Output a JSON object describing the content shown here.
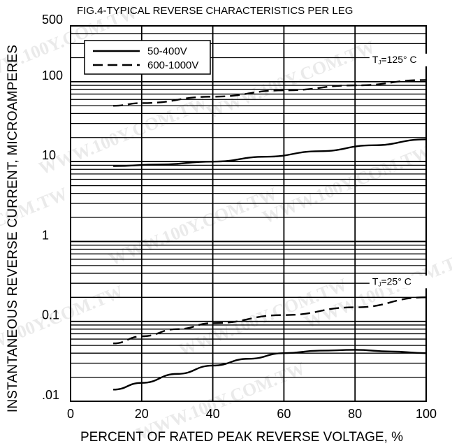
{
  "chart_data": {
    "type": "line",
    "title": "FIG.4-TYPICAL REVERSE CHARACTERISTICS PER LEG",
    "xlabel": "PERCENT OF RATED PEAK REVERSE VOLTAGE, %",
    "ylabel": "INSTANTANEOUS REVERSE CURRENT, MICROAMPERES",
    "x_scale": "linear",
    "y_scale": "log",
    "xlim": [
      0,
      100
    ],
    "ylim": [
      0.01,
      500
    ],
    "x_ticks": [
      {
        "value": 0,
        "label": "0"
      },
      {
        "value": 20,
        "label": "20"
      },
      {
        "value": 40,
        "label": "40"
      },
      {
        "value": 60,
        "label": "60"
      },
      {
        "value": 80,
        "label": "80"
      },
      {
        "value": 100,
        "label": "100"
      }
    ],
    "y_ticks": [
      {
        "value": 500,
        "label": "500"
      },
      {
        "value": 100,
        "label": "100"
      },
      {
        "value": 10,
        "label": "10"
      },
      {
        "value": 1,
        "label": "1"
      },
      {
        "value": 0.1,
        "label": "0.1"
      },
      {
        "value": 0.01,
        "label": ".01"
      }
    ],
    "grid": true,
    "legend": {
      "position": "top-left",
      "entries": [
        {
          "label": "50-400V",
          "style": "solid"
        },
        {
          "label": "600-1000V",
          "style": "dashed"
        }
      ]
    },
    "annotations": [
      {
        "text": "TJ=125° C",
        "main": "T",
        "sub": "J",
        "rest": "=125° C",
        "x": 88,
        "y": 120
      },
      {
        "text": "TJ=25° C",
        "main": "T",
        "sub": "J",
        "rest": "=25° C",
        "x": 88,
        "y": 0.2
      }
    ],
    "series": [
      {
        "legend": "600-1000V",
        "condition": "TJ=125° C",
        "style": "dashed",
        "points": [
          [
            12,
            50
          ],
          [
            20,
            54
          ],
          [
            40,
            65
          ],
          [
            60,
            78
          ],
          [
            80,
            90
          ],
          [
            100,
            105
          ]
        ]
      },
      {
        "legend": "50-400V",
        "condition": "TJ=125° C",
        "style": "solid",
        "points": [
          [
            12,
            8.8
          ],
          [
            25,
            9.2
          ],
          [
            40,
            10
          ],
          [
            55,
            11.5
          ],
          [
            70,
            13.5
          ],
          [
            85,
            16
          ],
          [
            100,
            19
          ]
        ]
      },
      {
        "legend": "600-1000V",
        "condition": "TJ=25° C",
        "style": "dashed",
        "points": [
          [
            12,
            0.053
          ],
          [
            20,
            0.065
          ],
          [
            30,
            0.08
          ],
          [
            40,
            0.095
          ],
          [
            60,
            0.12
          ],
          [
            80,
            0.15
          ],
          [
            100,
            0.2
          ]
        ]
      },
      {
        "legend": "50-400V",
        "condition": "TJ=25° C",
        "style": "solid",
        "points": [
          [
            12,
            0.014
          ],
          [
            20,
            0.017
          ],
          [
            30,
            0.022
          ],
          [
            40,
            0.028
          ],
          [
            50,
            0.034
          ],
          [
            60,
            0.04
          ],
          [
            70,
            0.043
          ],
          [
            80,
            0.044
          ],
          [
            90,
            0.042
          ],
          [
            100,
            0.04
          ]
        ]
      }
    ],
    "watermark": "WWW.100Y.COM.TW"
  }
}
